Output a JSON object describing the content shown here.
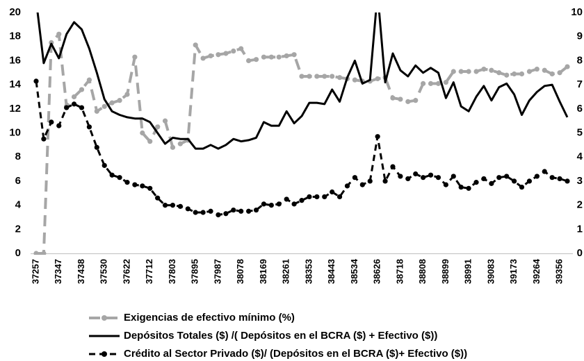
{
  "chart_data": {
    "type": "line",
    "categories": [
      "37257",
      null,
      null,
      "37347",
      null,
      null,
      "37438",
      null,
      null,
      "37530",
      null,
      null,
      "37622",
      null,
      null,
      "37712",
      null,
      null,
      "37803",
      null,
      null,
      "37895",
      null,
      null,
      "37987",
      null,
      null,
      "38078",
      null,
      null,
      "38169",
      null,
      null,
      "38261",
      null,
      null,
      "38353",
      null,
      null,
      "38443",
      null,
      null,
      "38534",
      null,
      null,
      "38626",
      null,
      null,
      "38718",
      null,
      null,
      "38808",
      null,
      null,
      "38899",
      null,
      null,
      "38991",
      null,
      null,
      "39083",
      null,
      null,
      "39173",
      null,
      null,
      "39264",
      null,
      null,
      "39356",
      null
    ],
    "ylim": [
      0,
      20
    ],
    "yticks": [
      0,
      2,
      4,
      6,
      8,
      10,
      12,
      14,
      16,
      18,
      20
    ],
    "y2lim": [
      0,
      10
    ],
    "y2ticks": [
      0,
      1,
      2,
      3,
      4,
      5,
      6,
      7,
      8,
      9,
      10
    ],
    "legend": "bottom",
    "series": [
      {
        "name": "Exigencias de efectivo mínimo (%)",
        "color": "#a6a6a6",
        "dashed": true,
        "markers": true,
        "axis": "y",
        "values": [
          0,
          0,
          17.5,
          18.2,
          12.2,
          13,
          13.6,
          14.4,
          11.8,
          12.2,
          12.5,
          12.7,
          13.2,
          16.3,
          10,
          9.3,
          10.5,
          11,
          8.8,
          9.1,
          9.4,
          17.3,
          16.2,
          16.4,
          16.5,
          16.6,
          16.8,
          17,
          16,
          16.1,
          16.3,
          16.3,
          16.3,
          16.4,
          16.5,
          14.7,
          14.7,
          14.7,
          14.7,
          14.7,
          14.6,
          14.5,
          14.4,
          14.3,
          14.3,
          14.5,
          14.6,
          12.9,
          12.8,
          12.6,
          12.7,
          14.1,
          14.1,
          14.1,
          14.2,
          15.1,
          15.1,
          15.1,
          15.1,
          15.3,
          15.2,
          15,
          14.8,
          14.9,
          14.9,
          15.1,
          15.3,
          15.2,
          14.9,
          15,
          15.5
        ]
      },
      {
        "name": "Depósitos Totales ($) /( Depósitos en el BCRA ($) + Efectivo ($))",
        "color": "#000000",
        "dashed": false,
        "markers": false,
        "axis": "y2",
        "values": [
          10.5,
          7.9,
          8.7,
          8.1,
          9.1,
          9.6,
          9.3,
          8.5,
          7.5,
          6.4,
          5.9,
          5.75,
          5.65,
          5.6,
          5.6,
          5.45,
          5,
          4.55,
          4.8,
          4.75,
          4.75,
          4.35,
          4.35,
          4.5,
          4.35,
          4.5,
          4.75,
          4.65,
          4.7,
          4.8,
          5.45,
          5.3,
          5.3,
          5.9,
          5.4,
          5.7,
          6.25,
          6.25,
          6.2,
          6.8,
          6.3,
          7.3,
          8,
          7.05,
          7.2,
          10.8,
          7.1,
          8.3,
          7.6,
          7.35,
          7.8,
          7.5,
          7.7,
          7.5,
          6.45,
          7.1,
          6.1,
          5.9,
          6.5,
          6.95,
          6.35,
          6.9,
          7.05,
          6.6,
          5.75,
          6.35,
          6.7,
          6.95,
          7,
          6.3,
          5.65
        ]
      },
      {
        "name": "Crédito al Sector Privado ($)/ (Depósitos en el BCRA ($)+ Efectivo ($))",
        "color": "#000000",
        "dashed": true,
        "markers": true,
        "axis": "y2",
        "values": [
          7.15,
          4.75,
          5.45,
          5.3,
          6.05,
          6.2,
          6.05,
          5.25,
          4.4,
          3.65,
          3.25,
          3.15,
          2.95,
          2.85,
          2.8,
          2.7,
          2.3,
          2,
          2,
          1.95,
          1.85,
          1.7,
          1.7,
          1.75,
          1.6,
          1.65,
          1.8,
          1.75,
          1.75,
          1.8,
          2.05,
          2,
          2.05,
          2.25,
          2.05,
          2.2,
          2.35,
          2.35,
          2.35,
          2.55,
          2.35,
          2.8,
          3.15,
          2.85,
          3,
          4.85,
          3,
          3.6,
          3.2,
          3.1,
          3.3,
          3.15,
          3.25,
          3.15,
          2.85,
          3.2,
          2.75,
          2.7,
          2.95,
          3.1,
          2.9,
          3.15,
          3.2,
          3,
          2.75,
          3,
          3.2,
          3.4,
          3.15,
          3.1,
          3
        ]
      }
    ]
  }
}
